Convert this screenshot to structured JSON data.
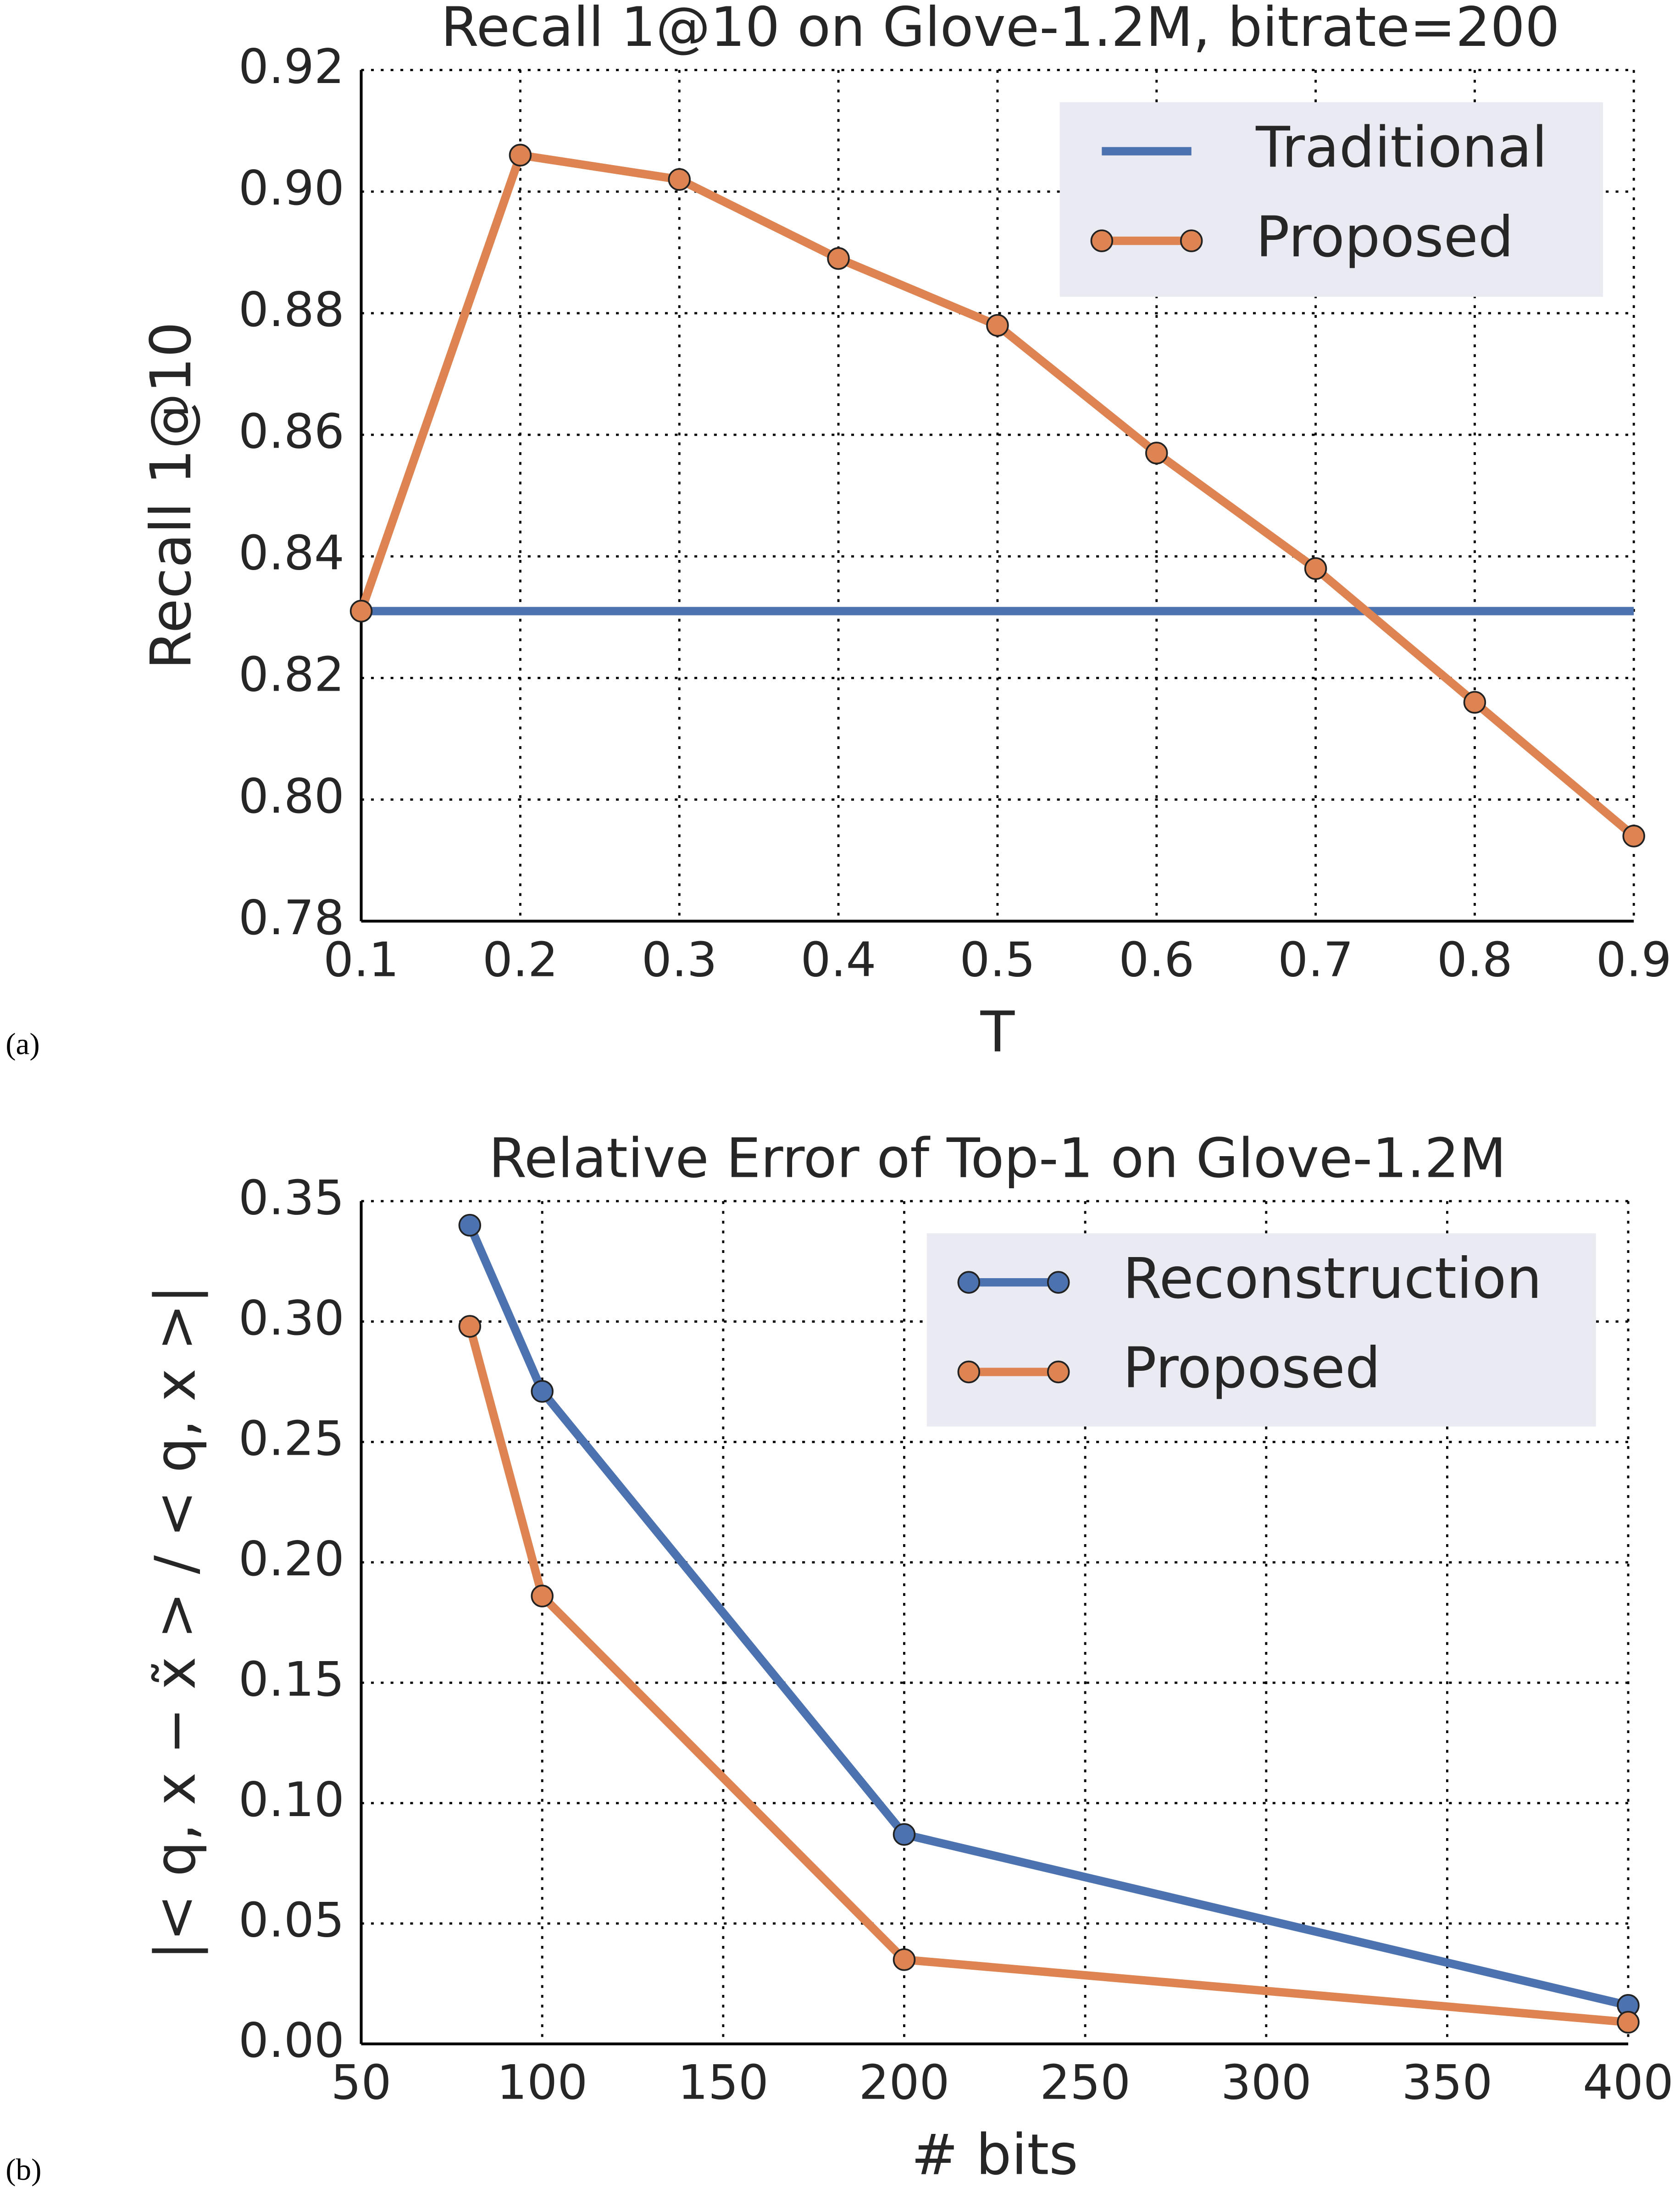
{
  "chart_data": [
    {
      "type": "line",
      "panel_label": "(a)",
      "title": "Recall 1@10 on Glove-1.2M, bitrate=200",
      "x_label": "T",
      "y_label": "Recall 1@10",
      "xlim": [
        0.1,
        0.9
      ],
      "xticks": [
        0.1,
        0.2,
        0.3,
        0.4,
        0.5,
        0.6,
        0.7,
        0.8,
        0.9
      ],
      "ylim": [
        0.78,
        0.92
      ],
      "yticks": [
        0.78,
        {
          "value": 0.8,
          "label": "0.80"
        },
        0.82,
        0.84,
        0.86,
        0.88,
        {
          "value": 0.9,
          "label": "0.90"
        },
        0.92
      ],
      "grid": true,
      "legend": "upper right",
      "series": [
        {
          "name": "Traditional",
          "color": "#4c72b0",
          "marker": false,
          "x": [
            0.1,
            0.9
          ],
          "values": [
            0.831,
            0.831
          ]
        },
        {
          "name": "Proposed",
          "color": "#dd8452",
          "marker": true,
          "x": [
            0.1,
            0.2,
            0.3,
            0.4,
            0.5,
            0.6,
            0.7,
            0.8,
            0.9
          ],
          "values": [
            0.831,
            0.906,
            0.902,
            0.889,
            0.878,
            0.857,
            0.838,
            0.816,
            0.794
          ]
        }
      ]
    },
    {
      "type": "line",
      "panel_label": "(b)",
      "title": "Relative Error of Top-1 on Glove-1.2M",
      "x_label": "# bits",
      "y_label": "|< q, x − x̃ > / < q, x >|",
      "xlim": [
        50,
        400
      ],
      "xticks": [
        50,
        100,
        150,
        200,
        250,
        300,
        350,
        400
      ],
      "ylim": [
        0,
        0.35
      ],
      "yticks": [
        {
          "value": 0,
          "label": "0.00"
        },
        0.05,
        {
          "value": 0.1,
          "label": "0.10"
        },
        0.15,
        {
          "value": 0.2,
          "label": "0.20"
        },
        0.25,
        {
          "value": 0.3,
          "label": "0.30"
        },
        0.35
      ],
      "grid": true,
      "legend": "upper right",
      "series": [
        {
          "name": "Reconstruction",
          "color": "#4c72b0",
          "marker": true,
          "x": [
            80,
            100,
            200,
            400
          ],
          "values": [
            0.34,
            0.271,
            0.087,
            0.016
          ]
        },
        {
          "name": "Proposed",
          "color": "#dd8452",
          "marker": true,
          "x": [
            80,
            100,
            200,
            400
          ],
          "values": [
            0.298,
            0.186,
            0.035,
            0.009
          ]
        }
      ]
    }
  ]
}
